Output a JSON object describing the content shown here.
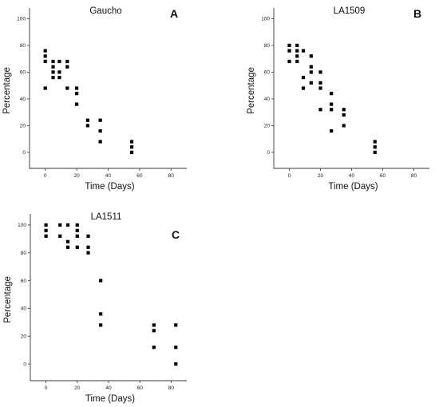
{
  "chart_data": [
    {
      "type": "scatter",
      "title": "Gaucho",
      "panel_label": "A",
      "xlabel": "Time (Days)",
      "ylabel": "Percentage",
      "xlim": [
        -10,
        90
      ],
      "ylim": [
        -12,
        108
      ],
      "xticks": [
        0,
        20,
        40,
        60,
        80
      ],
      "yticks": [
        0,
        20,
        40,
        60,
        80,
        100
      ],
      "grid": false,
      "series": [
        {
          "points": [
            [
              0,
              76
            ],
            [
              0,
              72
            ],
            [
              0,
              68
            ],
            [
              0,
              48
            ],
            [
              5,
              68
            ],
            [
              5,
              64
            ],
            [
              5,
              60
            ],
            [
              5,
              56
            ],
            [
              9,
              68
            ],
            [
              9,
              60
            ],
            [
              9,
              56
            ],
            [
              14,
              68
            ],
            [
              14,
              64
            ],
            [
              14,
              48
            ],
            [
              20,
              48
            ],
            [
              20,
              44
            ],
            [
              20,
              36
            ],
            [
              27,
              24
            ],
            [
              27,
              20
            ],
            [
              35,
              24
            ],
            [
              35,
              16
            ],
            [
              35,
              8
            ],
            [
              55,
              8
            ],
            [
              55,
              4
            ],
            [
              55,
              0
            ]
          ]
        }
      ]
    },
    {
      "type": "scatter",
      "title": "LA1509",
      "panel_label": "B",
      "xlabel": "Time (Days)",
      "ylabel": "Percentage",
      "xlim": [
        -10,
        90
      ],
      "ylim": [
        -12,
        108
      ],
      "xticks": [
        0,
        20,
        40,
        60,
        80
      ],
      "yticks": [
        0,
        20,
        40,
        60,
        80,
        100
      ],
      "grid": false,
      "series": [
        {
          "points": [
            [
              0,
              80
            ],
            [
              0,
              76
            ],
            [
              0,
              68
            ],
            [
              5,
              80
            ],
            [
              5,
              76
            ],
            [
              5,
              72
            ],
            [
              5,
              68
            ],
            [
              9,
              76
            ],
            [
              9,
              56
            ],
            [
              9,
              48
            ],
            [
              14,
              72
            ],
            [
              14,
              64
            ],
            [
              14,
              60
            ],
            [
              14,
              52
            ],
            [
              20,
              60
            ],
            [
              20,
              52
            ],
            [
              20,
              48
            ],
            [
              20,
              32
            ],
            [
              27,
              44
            ],
            [
              27,
              36
            ],
            [
              27,
              32
            ],
            [
              27,
              16
            ],
            [
              35,
              32
            ],
            [
              35,
              28
            ],
            [
              35,
              20
            ],
            [
              55,
              8
            ],
            [
              55,
              4
            ],
            [
              55,
              0
            ]
          ]
        }
      ]
    },
    {
      "type": "scatter",
      "title": "LA1511",
      "panel_label": "C",
      "xlabel": "Time (Days)",
      "ylabel": "Percentage",
      "xlim": [
        -10,
        90
      ],
      "ylim": [
        -12,
        108
      ],
      "xticks": [
        0,
        20,
        40,
        60,
        80
      ],
      "yticks": [
        0,
        20,
        40,
        60,
        80,
        100
      ],
      "grid": false,
      "series": [
        {
          "points": [
            [
              0,
              100
            ],
            [
              0,
              96
            ],
            [
              0,
              92
            ],
            [
              9,
              100
            ],
            [
              9,
              92
            ],
            [
              14,
              100
            ],
            [
              14,
              88
            ],
            [
              14,
              84
            ],
            [
              20,
              100
            ],
            [
              20,
              96
            ],
            [
              20,
              92
            ],
            [
              20,
              84
            ],
            [
              27,
              92
            ],
            [
              27,
              84
            ],
            [
              27,
              80
            ],
            [
              35,
              60
            ],
            [
              35,
              36
            ],
            [
              35,
              28
            ],
            [
              69,
              28
            ],
            [
              69,
              24
            ],
            [
              69,
              12
            ],
            [
              83,
              28
            ],
            [
              83,
              12
            ],
            [
              83,
              0
            ]
          ]
        }
      ]
    }
  ]
}
